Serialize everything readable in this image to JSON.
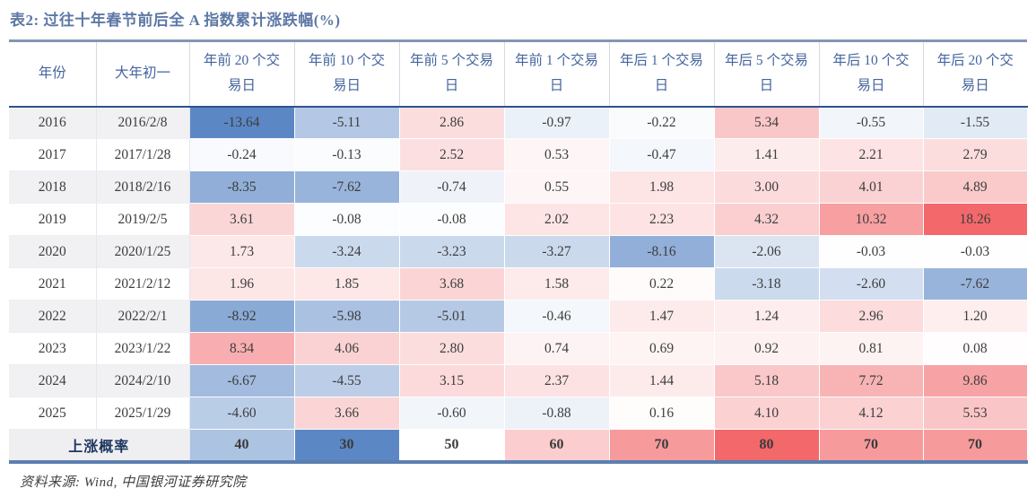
{
  "title": "表2: 过往十年春节前后全 A 指数累计涨跌幅(%)",
  "source": "资料来源: Wind, 中国银河证券研究院",
  "colors": {
    "title_text": "#5d78a6",
    "header_text": "#44659e",
    "header_rule": "#2f528f",
    "table_bottom_rule": "#5b7fb0",
    "heat_red_max": "#f2686b",
    "heat_blue_max": "#5b87c5",
    "stripe_gray": "#f1f1f3"
  },
  "chart_data": {
    "type": "table",
    "title": "表2: 过往十年春节前后全 A 指数累计涨跌幅(%)",
    "columns": [
      "年份",
      "大年初一",
      "年前 20 个交易日",
      "年前 10 个交易日",
      "年前 5 个交易日",
      "年前 1 个交易日",
      "年后 1 个交易日",
      "年后 5 个交易日",
      "年后 10 个交易日",
      "年后 20 个交易日"
    ],
    "rows": [
      {
        "year": "2016",
        "date": "2016/2/8",
        "values": [
          "-13.64",
          "-5.11",
          "2.86",
          "-0.97",
          "-0.22",
          "5.34",
          "-0.55",
          "-1.55"
        ]
      },
      {
        "year": "2017",
        "date": "2017/1/28",
        "values": [
          "-0.24",
          "-0.13",
          "2.52",
          "0.53",
          "-0.47",
          "1.41",
          "2.21",
          "2.79"
        ]
      },
      {
        "year": "2018",
        "date": "2018/2/16",
        "values": [
          "-8.35",
          "-7.62",
          "-0.74",
          "0.55",
          "1.98",
          "3.00",
          "4.01",
          "4.89"
        ]
      },
      {
        "year": "2019",
        "date": "2019/2/5",
        "values": [
          "3.61",
          "-0.08",
          "-0.08",
          "2.02",
          "2.23",
          "4.32",
          "10.32",
          "18.26"
        ]
      },
      {
        "year": "2020",
        "date": "2020/1/25",
        "values": [
          "1.73",
          "-3.24",
          "-3.23",
          "-3.27",
          "-8.16",
          "-2.06",
          "-0.03",
          "-0.03"
        ]
      },
      {
        "year": "2021",
        "date": "2021/2/12",
        "values": [
          "1.96",
          "1.85",
          "3.68",
          "1.58",
          "0.22",
          "-3.18",
          "-2.60",
          "-7.62"
        ]
      },
      {
        "year": "2022",
        "date": "2022/2/1",
        "values": [
          "-8.92",
          "-5.98",
          "-5.01",
          "-0.46",
          "1.47",
          "1.24",
          "2.96",
          "1.20"
        ]
      },
      {
        "year": "2023",
        "date": "2023/1/22",
        "values": [
          "8.34",
          "4.06",
          "2.80",
          "0.74",
          "0.69",
          "0.92",
          "0.81",
          "0.08"
        ]
      },
      {
        "year": "2024",
        "date": "2024/2/10",
        "values": [
          "-6.67",
          "-4.55",
          "3.15",
          "2.37",
          "1.44",
          "5.18",
          "7.72",
          "9.86"
        ]
      },
      {
        "year": "2025",
        "date": "2025/1/29",
        "values": [
          "-4.60",
          "3.66",
          "-0.60",
          "-0.88",
          "0.16",
          "4.10",
          "4.12",
          "5.53"
        ]
      }
    ],
    "probability_row": {
      "label": "上涨概率",
      "values": [
        "40",
        "30",
        "50",
        "60",
        "70",
        "80",
        "70",
        "70"
      ]
    },
    "heatmap": {
      "red": "#f2686b",
      "blue": "#5b87c5",
      "max_positive": 18.26,
      "max_negative": 13.64,
      "prob_midpoint": 50,
      "prob_red_range": 30,
      "prob_blue_range": 20
    }
  }
}
